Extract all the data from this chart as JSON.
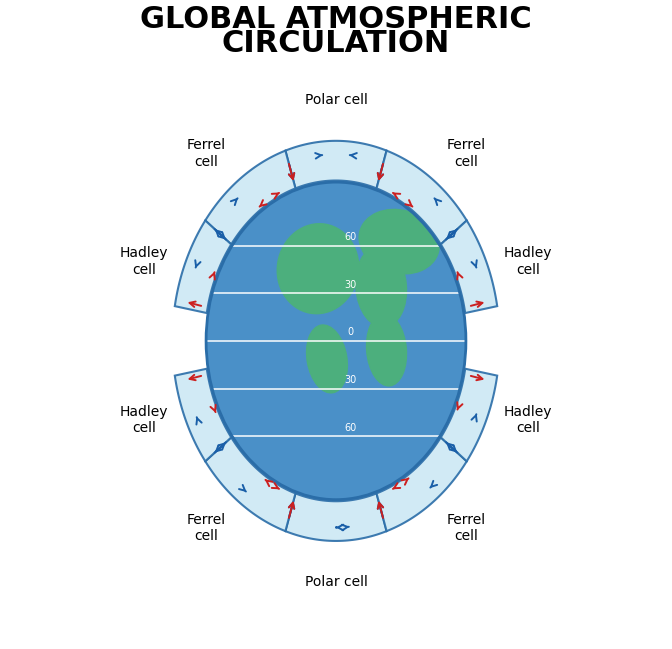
{
  "title_line1": "GLOBAL ATMOSPHERIC",
  "title_line2": "CIRCULATION",
  "title_fontsize": 22,
  "label_fontsize": 10,
  "bg_color": "#f0f0f0",
  "globe_color_ocean": "#4a90c8",
  "globe_color_land": "#4caf7d",
  "cell_fill_color": "#cce8f4",
  "cell_stroke_color": "#2a6da8",
  "arrow_blue": "#1a5fa8",
  "arrow_red": "#cc2020",
  "lat_labels": [
    "60",
    "30",
    "0",
    "30",
    "60"
  ],
  "fig_width": 6.72,
  "fig_height": 6.49,
  "dpi": 100
}
